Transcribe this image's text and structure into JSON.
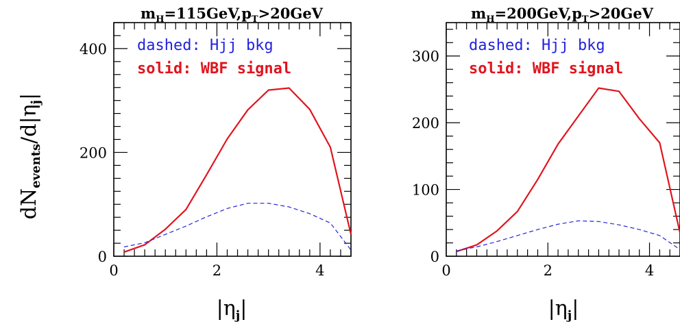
{
  "shared_ylabel": {
    "main": "dN",
    "sub": "events",
    "suffix": "/d|η",
    "sub2": "j",
    "close": "|"
  },
  "chart_data": [
    {
      "type": "line",
      "title": {
        "main": "m",
        "sub_h": "H",
        "mid": "=115GeV,p",
        "sub_t": "T",
        "end": ">20GeV"
      },
      "xlabel": {
        "main": "|η",
        "sub": "j",
        "close": "|"
      },
      "xlim": [
        0,
        4.6
      ],
      "ylim": [
        0,
        450
      ],
      "xticks": [
        0,
        2,
        4
      ],
      "xtick_labels": [
        "0",
        "2",
        "4"
      ],
      "yticks": [
        0,
        200,
        400
      ],
      "ytick_labels": [
        "0",
        "200",
        "400"
      ],
      "grid": false,
      "legend_lines": [
        {
          "text": "dashed: Hjj bkg",
          "color": "#2222dd"
        },
        {
          "text": "solid: WBF signal",
          "color": "#e0141e"
        }
      ],
      "series": [
        {
          "style": "solid",
          "color": "#e0141e",
          "x": [
            0.2,
            0.6,
            1.0,
            1.4,
            1.8,
            2.2,
            2.6,
            3.0,
            3.4,
            3.8,
            4.2,
            4.6
          ],
          "y": [
            8,
            22,
            52,
            90,
            157,
            226,
            282,
            320,
            324,
            283,
            210,
            42
          ]
        },
        {
          "style": "dashed",
          "color": "#2222dd",
          "x": [
            0.2,
            0.6,
            1.0,
            1.4,
            1.8,
            2.2,
            2.6,
            3.0,
            3.4,
            3.8,
            4.2,
            4.6
          ],
          "y": [
            18,
            26,
            42,
            58,
            76,
            92,
            102,
            102,
            95,
            82,
            64,
            12
          ]
        }
      ]
    },
    {
      "type": "line",
      "title": {
        "main": "m",
        "sub_h": "H",
        "mid": "=200GeV,p",
        "sub_t": "T",
        "end": ">20GeV"
      },
      "xlabel": {
        "main": "|η",
        "sub": "j",
        "close": "|"
      },
      "xlim": [
        0,
        4.6
      ],
      "ylim": [
        0,
        350
      ],
      "xticks": [
        0,
        2,
        4
      ],
      "xtick_labels": [
        "0",
        "2",
        "4"
      ],
      "yticks": [
        0,
        100,
        200,
        300
      ],
      "ytick_labels": [
        "0",
        "100",
        "200",
        "300"
      ],
      "grid": false,
      "legend_lines": [
        {
          "text": "dashed: Hjj bkg",
          "color": "#2222dd"
        },
        {
          "text": "solid: WBF signal",
          "color": "#e0141e"
        }
      ],
      "series": [
        {
          "style": "solid",
          "color": "#e0141e",
          "x": [
            0.2,
            0.6,
            1.0,
            1.4,
            1.8,
            2.2,
            2.6,
            3.0,
            3.4,
            3.8,
            4.2,
            4.6
          ],
          "y": [
            7,
            17,
            38,
            67,
            115,
            168,
            210,
            252,
            247,
            206,
            170,
            35
          ]
        },
        {
          "style": "dashed",
          "color": "#2222dd",
          "x": [
            0.2,
            0.6,
            1.0,
            1.4,
            1.8,
            2.2,
            2.6,
            3.0,
            3.4,
            3.8,
            4.2,
            4.6
          ],
          "y": [
            8,
            14,
            22,
            31,
            40,
            48,
            53,
            52,
            47,
            40,
            31,
            10
          ]
        }
      ]
    }
  ]
}
